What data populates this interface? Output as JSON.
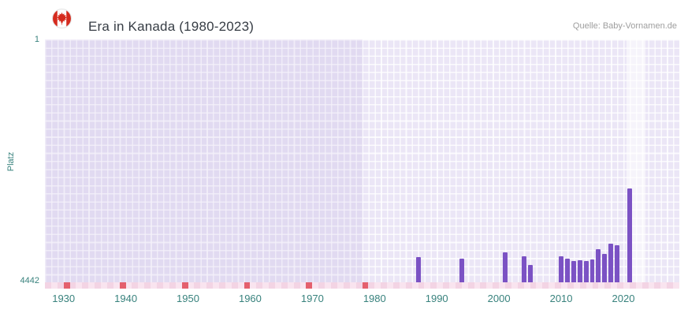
{
  "header": {
    "title": "Era in Kanada (1980-2023)",
    "source": "Quelle: Baby-Vornamen.de"
  },
  "axis": {
    "y_axis_title": "Platz",
    "y_top_label": "1",
    "y_bottom_label": "4442"
  },
  "colors": {
    "bar": "#7b52c4",
    "plot_bg": "#ebe6f6",
    "older_overlay": "rgba(114,82,185,0.08)",
    "grid_line": "rgba(255,255,255,0.8)",
    "highlight": "rgba(255,255,255,0.55)",
    "tick_text": "#38827d",
    "title_text": "#363c44",
    "source_text": "#9e9e9e",
    "strip_pink_a": "#f9e4ef",
    "strip_pink_b": "#f3d4e4",
    "strip_red": "#e4606d",
    "flag_red": "#d52b1e"
  },
  "chart_data": {
    "type": "bar",
    "title": "Era in Kanada (1980-2023)",
    "xlabel": "",
    "ylabel": "Platz",
    "y_axis_inverted": true,
    "ylim": [
      1,
      4442
    ],
    "y_ticks": [
      1,
      4442
    ],
    "x_range": [
      1927,
      2029
    ],
    "x_ticks": [
      1930,
      1940,
      1950,
      1960,
      1970,
      1980,
      1990,
      2000,
      2010,
      2020
    ],
    "grid": true,
    "legend": "none",
    "shaded_region_end": 1978,
    "highlight_years": [
      2021,
      2023
    ],
    "points": [
      {
        "year": 1987,
        "rank": 3980
      },
      {
        "year": 1994,
        "rank": 4010
      },
      {
        "year": 2001,
        "rank": 3900
      },
      {
        "year": 2004,
        "rank": 3970
      },
      {
        "year": 2005,
        "rank": 4130
      },
      {
        "year": 2010,
        "rank": 3970
      },
      {
        "year": 2011,
        "rank": 4010
      },
      {
        "year": 2012,
        "rank": 4050
      },
      {
        "year": 2013,
        "rank": 4040
      },
      {
        "year": 2014,
        "rank": 4050
      },
      {
        "year": 2015,
        "rank": 4020
      },
      {
        "year": 2016,
        "rank": 3840
      },
      {
        "year": 2017,
        "rank": 3920
      },
      {
        "year": 2018,
        "rank": 3730
      },
      {
        "year": 2019,
        "rank": 3770
      },
      {
        "year": 2021,
        "rank": 2720
      }
    ],
    "missing_year_marks": [
      1930,
      1939,
      1949,
      1959,
      1969,
      1978
    ]
  }
}
